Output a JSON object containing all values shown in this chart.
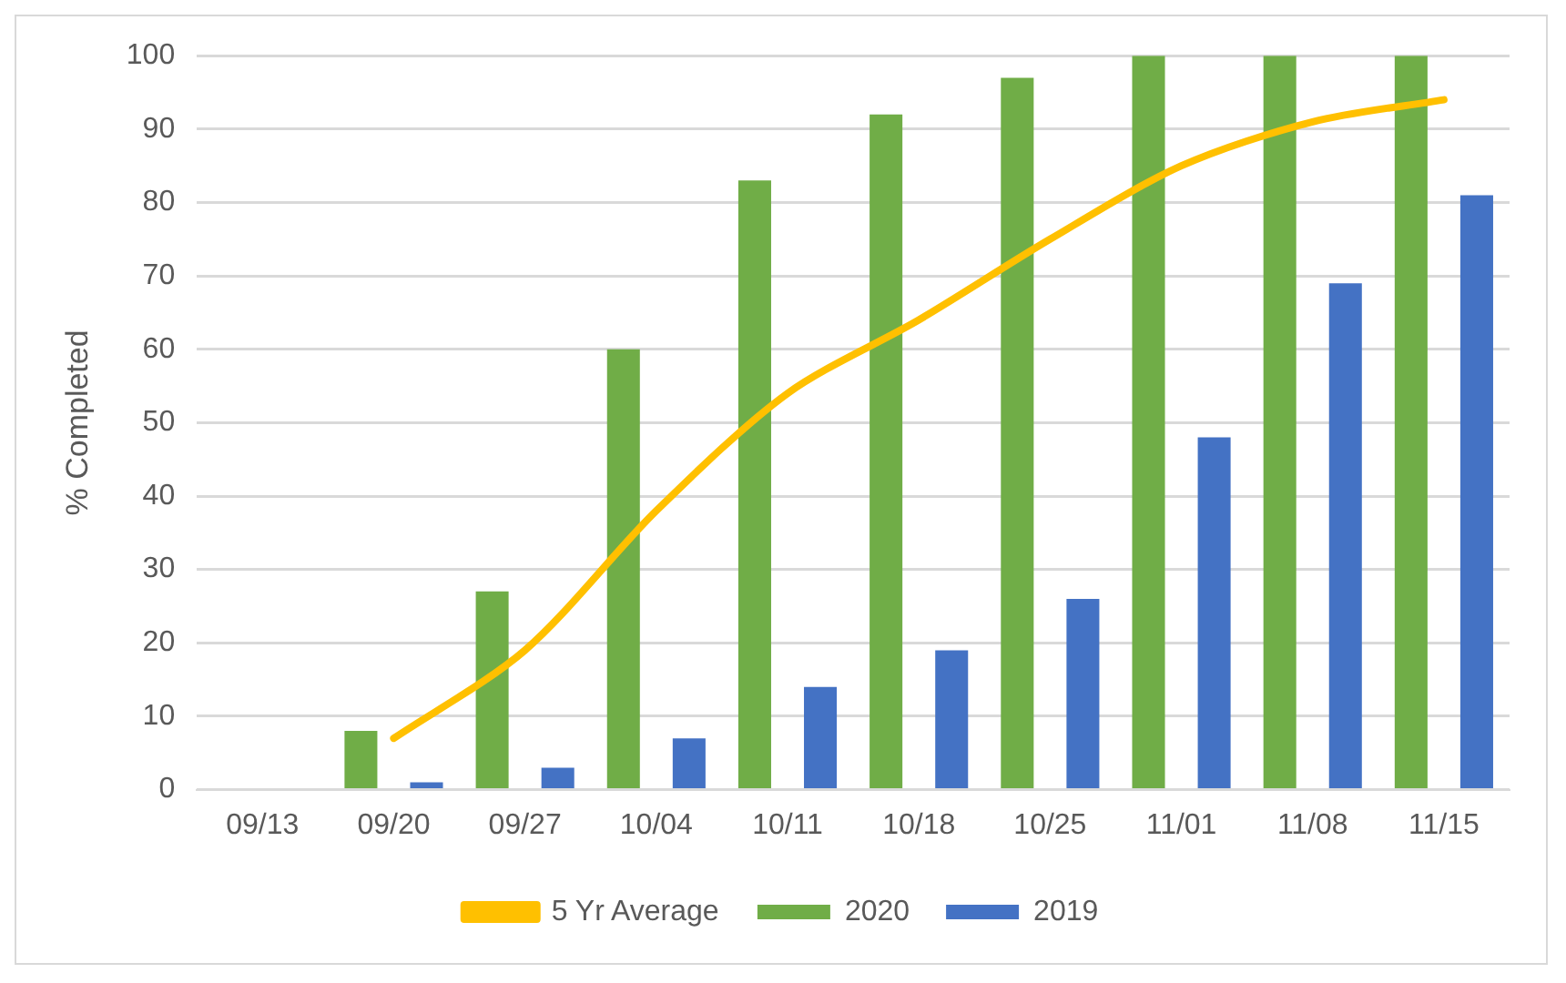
{
  "chart_data": {
    "type": "bar",
    "ylabel": "% Completed",
    "categories": [
      "09/13",
      "09/20",
      "09/27",
      "10/04",
      "10/11",
      "10/18",
      "10/25",
      "11/01",
      "11/08",
      "11/15"
    ],
    "series": [
      {
        "name": "2020",
        "color": "#70ad47",
        "values": [
          null,
          8,
          27,
          60,
          83,
          92,
          97,
          100,
          100,
          100
        ]
      },
      {
        "name": "2019",
        "color": "#4472c4",
        "values": [
          null,
          1,
          3,
          7,
          14,
          19,
          26,
          48,
          69,
          81
        ]
      },
      {
        "name": "5 Yr Average",
        "type": "line",
        "color": "#ffc000",
        "values": [
          null,
          7,
          19,
          38,
          54,
          64,
          75,
          85,
          91,
          94
        ]
      }
    ],
    "ylim": [
      0,
      100
    ],
    "yticks": [
      0,
      10,
      20,
      30,
      40,
      50,
      60,
      70,
      80,
      90,
      100
    ],
    "grid": "y",
    "legend": "bottom",
    "marker": "none"
  }
}
